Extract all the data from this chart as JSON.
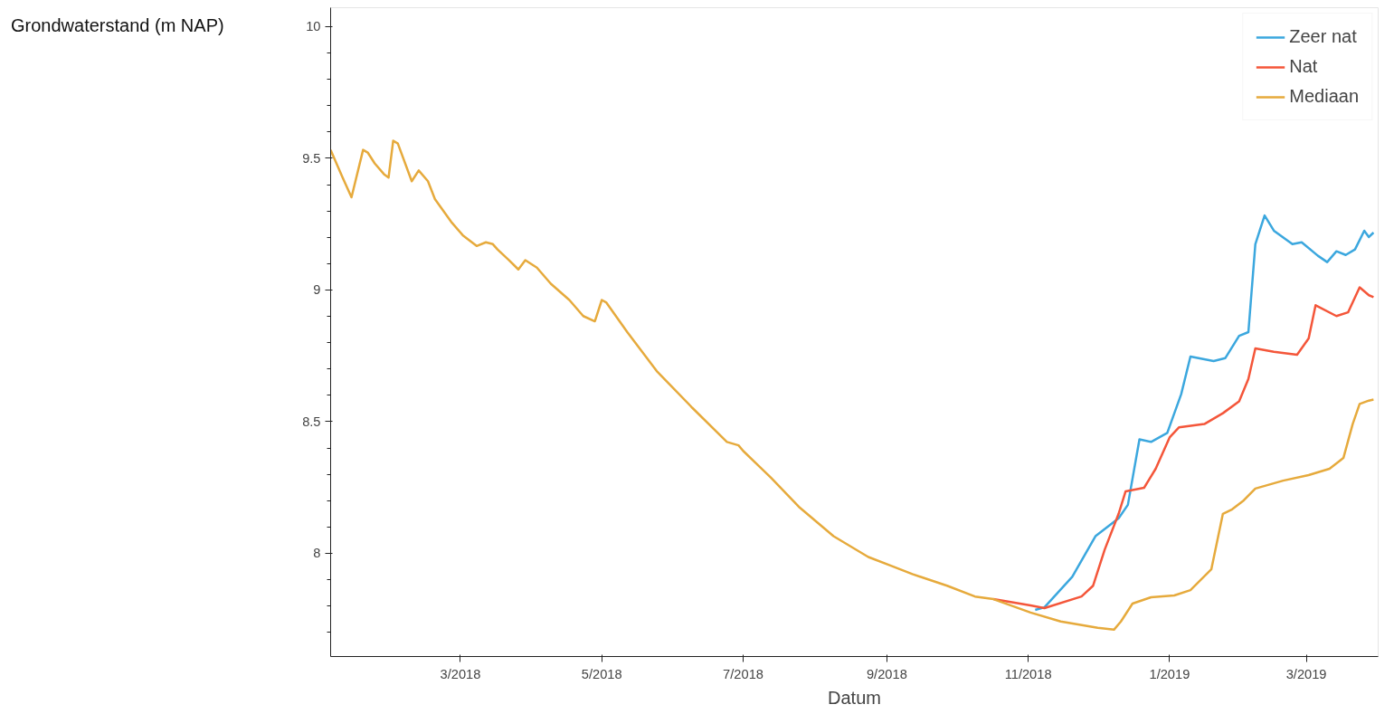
{
  "chart_data": {
    "type": "line",
    "xlabel": "Datum",
    "ylabel": "Grondwaterstand (m NAP)",
    "xlim": [
      "2018-01-04",
      "2019-04-01"
    ],
    "ylim": [
      7.608,
      10.072
    ],
    "xticks": [
      {
        "value": "2018-03-01",
        "label": "3/2018"
      },
      {
        "value": "2018-05-01",
        "label": "5/2018"
      },
      {
        "value": "2018-07-01",
        "label": "7/2018"
      },
      {
        "value": "2018-09-01",
        "label": "9/2018"
      },
      {
        "value": "2018-11-01",
        "label": "11/2018"
      },
      {
        "value": "2019-01-01",
        "label": "1/2019"
      },
      {
        "value": "2019-03-01",
        "label": "3/2019"
      }
    ],
    "yticks": [
      8,
      8.5,
      9,
      9.5,
      10
    ],
    "grid": false,
    "legend": "top right",
    "marker": "none",
    "line_style": "solid",
    "series": [
      {
        "name": "Zeer nat",
        "color": "#3ba7de",
        "x": [
          "2018-11-04",
          "2018-11-08",
          "2018-11-20",
          "2018-11-30",
          "2018-12-10",
          "2018-12-14",
          "2018-12-19",
          "2018-12-24",
          "2018-12-31",
          "2019-01-06",
          "2019-01-10",
          "2019-01-20",
          "2019-01-25",
          "2019-01-31",
          "2019-02-04",
          "2019-02-07",
          "2019-02-11",
          "2019-02-15",
          "2019-02-23",
          "2019-02-27",
          "2019-03-06",
          "2019-03-10",
          "2019-03-14",
          "2019-03-18",
          "2019-03-22",
          "2019-03-26",
          "2019-03-28",
          "2019-03-30"
        ],
        "values": [
          7.785,
          7.795,
          7.911,
          8.065,
          8.133,
          8.184,
          8.433,
          8.423,
          8.457,
          8.604,
          8.747,
          8.73,
          8.741,
          8.826,
          8.84,
          9.174,
          9.283,
          9.225,
          9.174,
          9.181,
          9.13,
          9.106,
          9.147,
          9.133,
          9.154,
          9.225,
          9.201,
          9.218
        ]
      },
      {
        "name": "Nat",
        "color": "#f4563a",
        "x": [
          "2018-10-17",
          "2018-11-02",
          "2018-11-08",
          "2018-11-24",
          "2018-11-29",
          "2018-12-04",
          "2018-12-10",
          "2018-12-13",
          "2018-12-21",
          "2018-12-26",
          "2019-01-01",
          "2019-01-05",
          "2019-01-16",
          "2019-01-24",
          "2019-01-31",
          "2019-02-04",
          "2019-02-07",
          "2019-02-15",
          "2019-02-25",
          "2019-03-02",
          "2019-03-05",
          "2019-03-14",
          "2019-03-19",
          "2019-03-24",
          "2019-03-28",
          "2019-03-30"
        ],
        "values": [
          7.826,
          7.802,
          7.792,
          7.836,
          7.877,
          8.014,
          8.15,
          8.235,
          8.249,
          8.321,
          8.44,
          8.478,
          8.491,
          8.532,
          8.577,
          8.662,
          8.778,
          8.765,
          8.754,
          8.816,
          8.942,
          8.901,
          8.915,
          9.01,
          8.98,
          8.973
        ]
      },
      {
        "name": "Mediaan",
        "color": "#e6aa3c",
        "x": [
          "2018-01-04",
          "2018-01-09",
          "2018-01-13",
          "2018-01-18",
          "2018-01-20",
          "2018-01-23",
          "2018-01-27",
          "2018-01-29",
          "2018-01-31",
          "2018-02-02",
          "2018-02-08",
          "2018-02-11",
          "2018-02-15",
          "2018-02-18",
          "2018-02-25",
          "2018-03-02",
          "2018-03-08",
          "2018-03-12",
          "2018-03-15",
          "2018-03-17",
          "2018-03-22",
          "2018-03-26",
          "2018-03-29",
          "2018-04-03",
          "2018-04-09",
          "2018-04-17",
          "2018-04-23",
          "2018-04-28",
          "2018-05-01",
          "2018-05-03",
          "2018-05-12",
          "2018-05-25",
          "2018-06-09",
          "2018-06-24",
          "2018-06-29",
          "2018-07-01",
          "2018-07-13",
          "2018-07-25",
          "2018-08-09",
          "2018-08-24",
          "2018-09-03",
          "2018-09-12",
          "2018-09-27",
          "2018-10-09",
          "2018-10-17",
          "2018-11-02",
          "2018-11-15",
          "2018-12-01",
          "2018-12-08",
          "2018-12-11",
          "2018-12-16",
          "2018-12-24",
          "2019-01-03",
          "2019-01-10",
          "2019-01-19",
          "2019-01-24",
          "2019-01-28",
          "2019-02-02",
          "2019-02-07",
          "2019-02-19",
          "2019-03-02",
          "2019-03-11",
          "2019-03-17",
          "2019-03-21",
          "2019-03-24",
          "2019-03-28",
          "2019-03-30"
        ],
        "values": [
          9.532,
          9.43,
          9.352,
          9.532,
          9.522,
          9.481,
          9.44,
          9.427,
          9.567,
          9.556,
          9.413,
          9.454,
          9.413,
          9.345,
          9.259,
          9.208,
          9.167,
          9.181,
          9.174,
          9.154,
          9.113,
          9.078,
          9.113,
          9.085,
          9.024,
          8.962,
          8.901,
          8.881,
          8.962,
          8.952,
          8.84,
          8.689,
          8.553,
          8.423,
          8.41,
          8.389,
          8.287,
          8.177,
          8.065,
          7.986,
          7.952,
          7.921,
          7.877,
          7.836,
          7.826,
          7.775,
          7.741,
          7.717,
          7.71,
          7.741,
          7.809,
          7.833,
          7.84,
          7.86,
          7.939,
          8.15,
          8.167,
          8.201,
          8.246,
          8.276,
          8.297,
          8.321,
          8.362,
          8.491,
          8.567,
          8.58,
          8.584
        ]
      }
    ]
  }
}
